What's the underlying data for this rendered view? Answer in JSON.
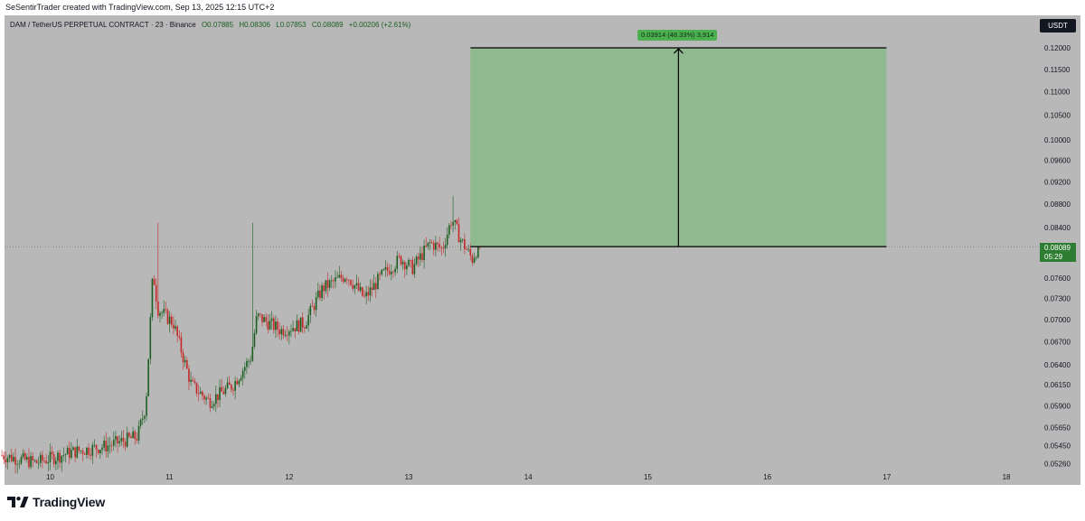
{
  "header": {
    "creator_line": "SeSentirTrader created with TradingView.com, Sep 13, 2025 12:15 UTC+2"
  },
  "legend": {
    "symbol": "DAM / TetherUS PERPETUAL CONTRACT · 23 · Binance",
    "open": "O0.07885",
    "high": "H0.08306",
    "low": "L0.07853",
    "close": "C0.08089",
    "change": "+0.00206 (+2.61%)"
  },
  "price_axis": {
    "currency": "USDT",
    "last_price": "0.08089",
    "countdown": "05:29"
  },
  "measure_tool": {
    "label": "0.03914 (48.33%) 3,914"
  },
  "footer": {
    "brand": "TradingView"
  },
  "colors": {
    "background": "#b8b8b8",
    "up_candle": "#1b5e20",
    "down_candle": "#c62828",
    "measure_fill": "#8fb98f",
    "badge_green": "#2e7d32"
  },
  "chart_data": {
    "type": "candlestick",
    "title": "DAM / TetherUS PERPETUAL CONTRACT · 23 · Binance",
    "y_ticks": [
      "0.12000",
      "0.11500",
      "0.11000",
      "0.10500",
      "0.10000",
      "0.09600",
      "0.09200",
      "0.08800",
      "0.08400",
      "0.08089",
      "0.07600",
      "0.07300",
      "0.07000",
      "0.06700",
      "0.06400",
      "0.06150",
      "0.05900",
      "0.05650",
      "0.05450",
      "0.05260"
    ],
    "y_scale": "log",
    "ylim": [
      0.0517,
      0.128
    ],
    "x_ticks": [
      "10",
      "11",
      "12",
      "13",
      "14",
      "15",
      "16",
      "17",
      "18"
    ],
    "x_label": "",
    "y_label": "",
    "grid": false,
    "last_price": 0.08089,
    "price_path": [
      [
        9.6,
        0.0535
      ],
      [
        9.9,
        0.0527
      ],
      [
        10.2,
        0.0538
      ],
      [
        10.5,
        0.0545
      ],
      [
        10.75,
        0.0555
      ],
      [
        10.82,
        0.059
      ],
      [
        10.88,
        0.077
      ],
      [
        10.92,
        0.0715
      ],
      [
        11.05,
        0.0695
      ],
      [
        11.2,
        0.0615
      ],
      [
        11.35,
        0.0595
      ],
      [
        11.55,
        0.0615
      ],
      [
        11.7,
        0.065
      ],
      [
        11.75,
        0.0705
      ],
      [
        11.95,
        0.0685
      ],
      [
        12.15,
        0.0695
      ],
      [
        12.3,
        0.0745
      ],
      [
        12.5,
        0.0765
      ],
      [
        12.65,
        0.073
      ],
      [
        12.8,
        0.0765
      ],
      [
        12.95,
        0.079
      ],
      [
        13.05,
        0.0775
      ],
      [
        13.2,
        0.0815
      ],
      [
        13.3,
        0.0805
      ],
      [
        13.38,
        0.0855
      ],
      [
        13.45,
        0.0822
      ],
      [
        13.55,
        0.0789
      ],
      [
        13.6,
        0.0809
      ]
    ],
    "spikes": [
      {
        "x": 10.9,
        "high": 0.0848
      },
      {
        "x": 11.7,
        "high": 0.0848
      },
      {
        "x": 13.38,
        "high": 0.0895
      }
    ],
    "measure": {
      "x_start": 13.52,
      "x_end": 17.0,
      "y_start": 0.08089,
      "y_end": 0.12,
      "change": 0.03914,
      "change_pct": 48.33,
      "ticks": 3914
    }
  }
}
